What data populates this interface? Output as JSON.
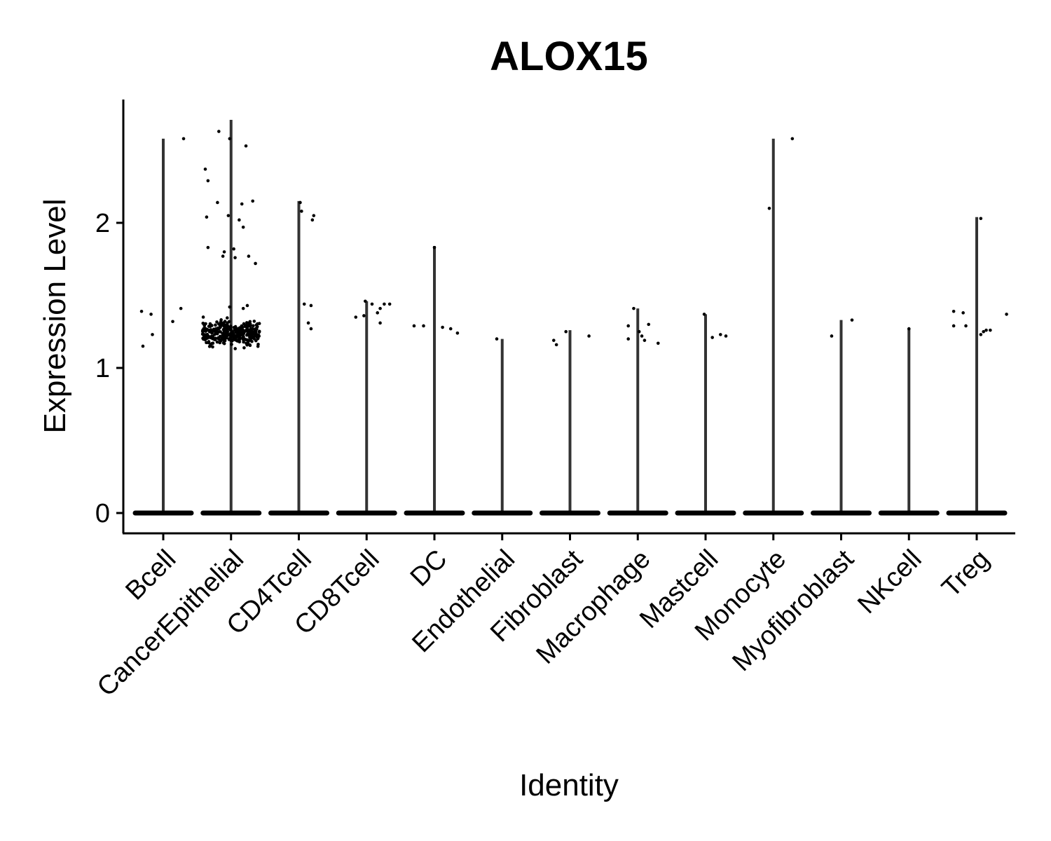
{
  "chart_data": {
    "type": "violin",
    "title": "ALOX15",
    "xlabel": "Identity",
    "ylabel": "Expression Level",
    "ylim": [
      -0.14,
      2.85
    ],
    "yticks": [
      0,
      1,
      2
    ],
    "grid": false,
    "legend": "none",
    "categories": [
      "Bcell",
      "CancerEpithelial",
      "CD4Tcell",
      "CD8Tcell",
      "DC",
      "Endothelial",
      "Fibroblast",
      "Macrophage",
      "Mastcell",
      "Monocyte",
      "Myofibroblast",
      "NKcell",
      "Treg"
    ],
    "max_values": [
      2.58,
      2.71,
      2.15,
      1.46,
      1.84,
      1.2,
      1.26,
      1.41,
      1.37,
      2.58,
      1.33,
      1.27,
      2.04
    ],
    "points": [
      [
        [
          -0.32,
          1.39
        ],
        [
          -0.3,
          1.15
        ],
        [
          -0.18,
          1.37
        ],
        [
          -0.16,
          1.23
        ],
        [
          0.14,
          1.32
        ],
        [
          0.26,
          1.41
        ],
        [
          0.3,
          2.58
        ]
      ],
      [
        [
          -0.18,
          2.63
        ],
        [
          -0.38,
          2.37
        ],
        [
          -0.34,
          2.29
        ],
        [
          -0.02,
          2.58
        ],
        [
          0.22,
          2.53
        ],
        [
          -0.2,
          2.14
        ],
        [
          0.16,
          2.13
        ],
        [
          0.32,
          2.15
        ],
        [
          -0.36,
          2.04
        ],
        [
          -0.04,
          2.05
        ],
        [
          0.12,
          2.02
        ],
        [
          0.18,
          1.97
        ],
        [
          -0.34,
          1.83
        ],
        [
          -0.12,
          1.77
        ],
        [
          -0.1,
          1.8
        ],
        [
          0.04,
          1.82
        ],
        [
          0.06,
          1.76
        ],
        [
          0.26,
          1.77
        ],
        [
          0.36,
          1.72
        ],
        [
          -0.02,
          1.42
        ],
        [
          0.18,
          1.41
        ],
        [
          0.24,
          1.43
        ]
      ],
      [
        [
          0.02,
          2.14
        ],
        [
          0.04,
          2.08
        ],
        [
          0.22,
          2.05
        ],
        [
          0.2,
          2.02
        ],
        [
          0.08,
          1.44
        ],
        [
          0.18,
          1.43
        ],
        [
          0.14,
          1.31
        ],
        [
          0.18,
          1.27
        ]
      ],
      [
        [
          -0.16,
          1.35
        ],
        [
          -0.04,
          1.36
        ],
        [
          -0.02,
          1.46
        ],
        [
          0.08,
          1.44
        ],
        [
          0.16,
          1.38
        ],
        [
          0.2,
          1.41
        ],
        [
          0.26,
          1.44
        ],
        [
          0.34,
          1.44
        ],
        [
          0.2,
          1.31
        ]
      ],
      [
        [
          -0.3,
          1.29
        ],
        [
          -0.16,
          1.29
        ],
        [
          0.12,
          1.28
        ],
        [
          0.24,
          1.27
        ],
        [
          0.34,
          1.24
        ],
        [
          0.0,
          1.83
        ]
      ],
      [
        [
          -0.08,
          1.2
        ]
      ],
      [
        [
          -0.24,
          1.19
        ],
        [
          -0.2,
          1.16
        ],
        [
          -0.06,
          1.25
        ],
        [
          0.28,
          1.22
        ]
      ],
      [
        [
          -0.14,
          1.29
        ],
        [
          -0.14,
          1.2
        ],
        [
          -0.06,
          1.41
        ],
        [
          0.02,
          1.25
        ],
        [
          0.06,
          1.22
        ],
        [
          0.1,
          1.19
        ],
        [
          0.16,
          1.3
        ],
        [
          0.3,
          1.17
        ]
      ],
      [
        [
          -0.02,
          1.37
        ],
        [
          0.1,
          1.21
        ],
        [
          0.22,
          1.23
        ],
        [
          0.3,
          1.22
        ]
      ],
      [
        [
          -0.06,
          2.1
        ],
        [
          0.28,
          2.58
        ]
      ],
      [
        [
          -0.14,
          1.22
        ],
        [
          0.16,
          1.33
        ]
      ],
      [
        [
          0.0,
          1.27
        ]
      ],
      [
        [
          -0.34,
          1.29
        ],
        [
          -0.34,
          1.39
        ],
        [
          -0.2,
          1.38
        ],
        [
          -0.16,
          1.29
        ],
        [
          0.06,
          2.03
        ],
        [
          0.06,
          1.23
        ],
        [
          0.1,
          1.25
        ],
        [
          0.14,
          1.26
        ],
        [
          0.2,
          1.26
        ],
        [
          0.44,
          1.37
        ]
      ]
    ],
    "dense_cluster": {
      "category": "CancerEpithelial",
      "count": 320,
      "y_range": [
        1.12,
        1.36
      ],
      "x_spread": 0.42
    }
  }
}
